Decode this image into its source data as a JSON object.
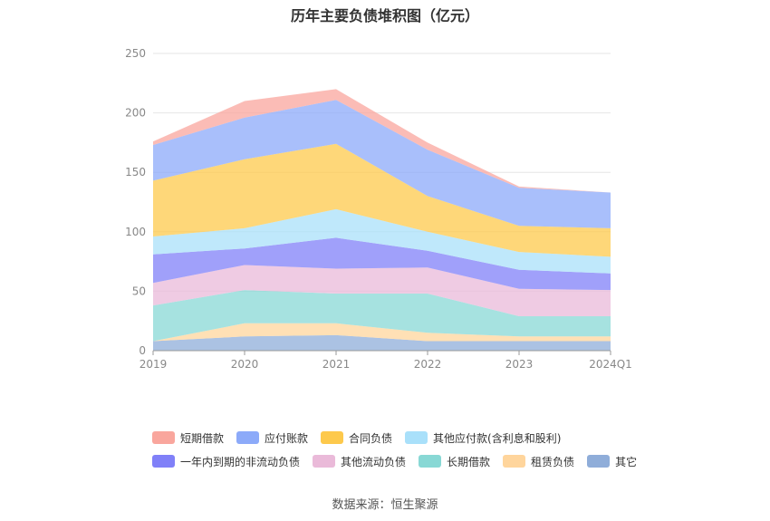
{
  "title": "历年主要负债堆积图（亿元）",
  "source": "数据来源：恒生聚源",
  "chart_data": {
    "type": "area",
    "stacked": true,
    "x": [
      "2019",
      "2020",
      "2021",
      "2022",
      "2023",
      "2024Q1"
    ],
    "ylim": [
      0,
      250
    ],
    "yticks": [
      0,
      50,
      100,
      150,
      200,
      250
    ],
    "grid": true,
    "legend_position": "bottom",
    "series": [
      {
        "name": "其它",
        "color": "#8fadd9",
        "values": [
          8,
          12,
          13,
          8,
          8,
          8
        ]
      },
      {
        "name": "租赁负债",
        "color": "#ffd59c",
        "values": [
          0,
          11,
          10,
          7,
          4,
          4
        ]
      },
      {
        "name": "长期借款",
        "color": "#88d8d5",
        "values": [
          30,
          28,
          25,
          33,
          17,
          17
        ]
      },
      {
        "name": "其他流动负债",
        "color": "#eabad9",
        "values": [
          19,
          21,
          21,
          22,
          23,
          22
        ]
      },
      {
        "name": "一年内到期的非流动负债",
        "color": "#8080f8",
        "values": [
          24,
          14,
          26,
          14,
          16,
          14
        ]
      },
      {
        "name": "其他应付款(含利息和股利)",
        "color": "#a9e0fa",
        "values": [
          15,
          17,
          24,
          16,
          15,
          14
        ]
      },
      {
        "name": "合同负债",
        "color": "#fdc94c",
        "values": [
          47,
          58,
          55,
          30,
          22,
          24
        ]
      },
      {
        "name": "应付账款",
        "color": "#8caaf9",
        "values": [
          30,
          35,
          37,
          39,
          32,
          30
        ]
      },
      {
        "name": "短期借款",
        "color": "#f9a69d",
        "values": [
          3,
          14,
          9,
          6,
          1,
          0
        ]
      }
    ]
  },
  "legend": [
    {
      "name": "短期借款",
      "color": "#f9a69d"
    },
    {
      "name": "应付账款",
      "color": "#8caaf9"
    },
    {
      "name": "合同负债",
      "color": "#fdc94c"
    },
    {
      "name": "其他应付款(含利息和股利)",
      "color": "#a9e0fa"
    },
    {
      "name": "一年内到期的非流动负债",
      "color": "#8080f8"
    },
    {
      "name": "其他流动负债",
      "color": "#eabad9"
    },
    {
      "name": "长期借款",
      "color": "#88d8d5"
    },
    {
      "name": "租赁负债",
      "color": "#ffd59c"
    },
    {
      "name": "其它",
      "color": "#8fadd9"
    }
  ]
}
